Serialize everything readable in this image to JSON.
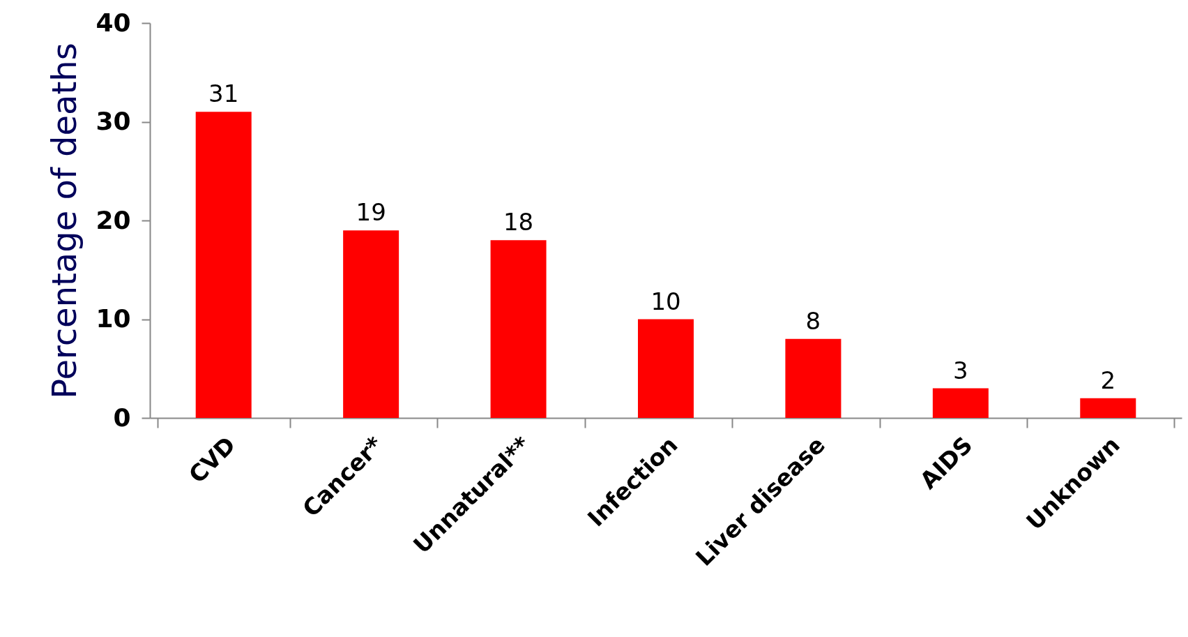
{
  "chart_data": {
    "type": "bar",
    "ylabel": "Percentage of deaths",
    "categories": [
      "CVD",
      "Cancer*",
      "Unnatural**",
      "Infection",
      "Liver disease",
      "AIDS",
      "Unknown"
    ],
    "values": [
      31,
      19,
      18,
      10,
      8,
      3,
      2
    ],
    "color": "#ff0000",
    "ylim": [
      0,
      40
    ],
    "yticks": [
      0,
      10,
      20,
      30,
      40
    ],
    "grid": false,
    "data_labels": true
  }
}
